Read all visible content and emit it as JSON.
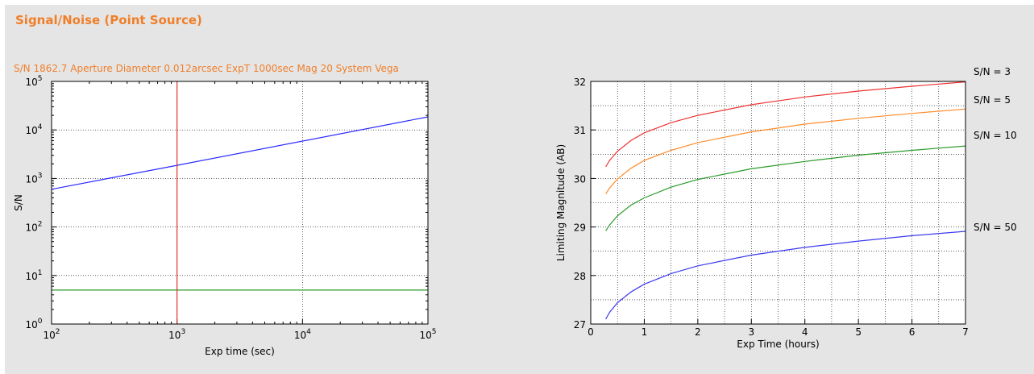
{
  "panel": {
    "title": "Signal/Noise (Point Source)",
    "summary": "S/N 1862.7 Aperture Diameter 0.012arcsec  ExpT 1000sec  Mag 20 System Vega"
  },
  "chart_data": [
    {
      "type": "line",
      "xlabel": "Exp time (sec)",
      "ylabel": "S/N",
      "xscale": "log",
      "yscale": "log",
      "xlim": [
        100,
        100000
      ],
      "ylim": [
        1,
        100000
      ],
      "x_ticks": [
        100,
        1000,
        10000,
        100000
      ],
      "y_ticks": [
        1,
        10,
        100,
        1000,
        10000,
        100000
      ],
      "grid": true,
      "series": [
        {
          "color": "#2b2bff",
          "x": [
            100,
            1000,
            100000
          ],
          "y": [
            600,
            1862.7,
            18600
          ]
        },
        {
          "color": "#2a9a2a",
          "x": [
            100,
            100000
          ],
          "y": [
            5,
            5
          ]
        }
      ],
      "vline": {
        "x": 1000,
        "color": "#e03030"
      }
    },
    {
      "type": "line",
      "xlabel": "Exp Time (hours)",
      "ylabel": "Limiting Magnitude (AB)",
      "xlim": [
        0,
        7
      ],
      "ylim": [
        27,
        32
      ],
      "x_ticks": [
        0,
        1,
        2,
        3,
        4,
        5,
        6,
        7
      ],
      "y_ticks": [
        27,
        28,
        29,
        30,
        31,
        32
      ],
      "grid": true,
      "series": [
        {
          "name": "S/N = 3",
          "color": "#ee3333",
          "x": [
            0.28,
            0.35,
            0.5,
            0.75,
            1,
            1.5,
            2,
            3,
            4,
            5,
            6,
            7
          ],
          "y": [
            30.24,
            30.37,
            30.56,
            30.78,
            30.94,
            31.15,
            31.3,
            31.52,
            31.68,
            31.8,
            31.9,
            31.99
          ]
        },
        {
          "name": "S/N = 5",
          "color": "#ff8c2a",
          "x": [
            0.28,
            0.35,
            0.5,
            0.75,
            1,
            1.5,
            2,
            3,
            4,
            5,
            6,
            7
          ],
          "y": [
            29.68,
            29.8,
            29.99,
            30.21,
            30.37,
            30.58,
            30.74,
            30.96,
            31.12,
            31.24,
            31.34,
            31.43
          ]
        },
        {
          "name": "S/N = 10",
          "color": "#2a9a2a",
          "x": [
            0.28,
            0.35,
            0.5,
            0.75,
            1,
            1.5,
            2,
            3,
            4,
            5,
            6,
            7
          ],
          "y": [
            28.92,
            29.04,
            29.23,
            29.45,
            29.6,
            29.82,
            29.98,
            30.2,
            30.35,
            30.48,
            30.58,
            30.67
          ]
        },
        {
          "name": "S/N = 50",
          "color": "#3a3aee",
          "x": [
            0.28,
            0.35,
            0.5,
            0.75,
            1,
            1.5,
            2,
            3,
            4,
            5,
            6,
            7
          ],
          "y": [
            27.1,
            27.24,
            27.44,
            27.66,
            27.82,
            28.04,
            28.2,
            28.42,
            28.58,
            28.71,
            28.82,
            28.91
          ]
        }
      ]
    }
  ]
}
